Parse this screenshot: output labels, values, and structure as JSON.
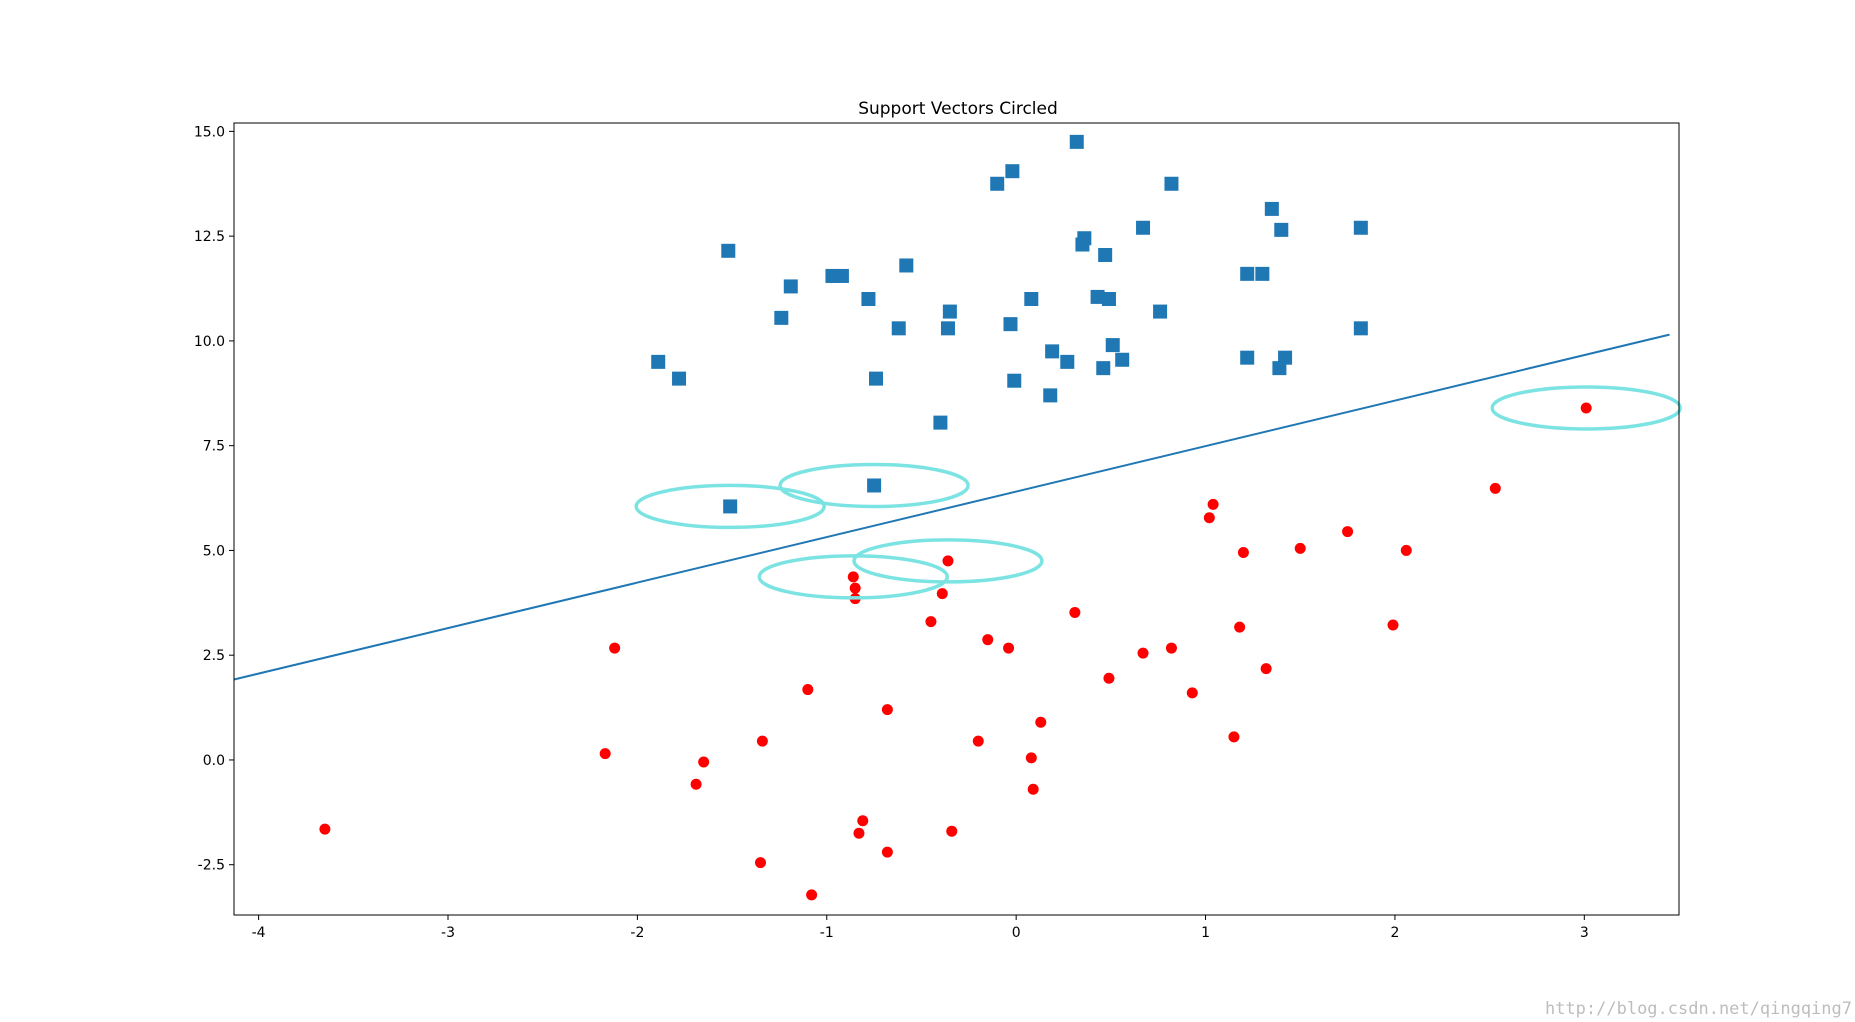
{
  "chart_data": {
    "type": "scatter",
    "title": "Support Vectors Circled",
    "xlim": [
      -4.13,
      3.5
    ],
    "ylim": [
      -3.7,
      15.2
    ],
    "x_ticks": [
      -4,
      -3,
      -2,
      -1,
      0,
      1,
      2,
      3
    ],
    "x_tick_labels": [
      "-4",
      "-3",
      "-2",
      "-1",
      "0",
      "1",
      "2",
      "3"
    ],
    "y_ticks": [
      15.0,
      12.5,
      10.0,
      7.5,
      5.0,
      2.5,
      0.0,
      -2.5
    ],
    "y_tick_labels": [
      "15.0",
      "12.5",
      "10.0",
      "7.5",
      "5.0",
      "2.5",
      "0.0",
      "-2.5"
    ],
    "grid": false,
    "colors": {
      "class_square": "#1f77b4",
      "class_circle": "#ff0000",
      "boundary": "#1f77b4",
      "support_vector_ring": "#7ce3e3"
    },
    "series": [
      {
        "marker": "square",
        "points": [
          [
            0.32,
            14.75
          ],
          [
            -0.02,
            14.05
          ],
          [
            -0.1,
            13.75
          ],
          [
            0.82,
            13.75
          ],
          [
            1.35,
            13.15
          ],
          [
            1.82,
            12.7
          ],
          [
            0.67,
            12.7
          ],
          [
            1.4,
            12.65
          ],
          [
            -1.52,
            12.15
          ],
          [
            0.36,
            12.45
          ],
          [
            0.35,
            12.3
          ],
          [
            0.47,
            12.05
          ],
          [
            -0.58,
            11.8
          ],
          [
            1.22,
            11.6
          ],
          [
            1.3,
            11.6
          ],
          [
            -0.97,
            11.55
          ],
          [
            -0.92,
            11.55
          ],
          [
            -1.19,
            11.3
          ],
          [
            -0.78,
            11.0
          ],
          [
            0.08,
            11.0
          ],
          [
            0.43,
            11.05
          ],
          [
            0.49,
            11.0
          ],
          [
            0.76,
            10.7
          ],
          [
            -0.35,
            10.7
          ],
          [
            -1.24,
            10.55
          ],
          [
            -0.62,
            10.3
          ],
          [
            -0.36,
            10.3
          ],
          [
            -0.03,
            10.4
          ],
          [
            1.82,
            10.3
          ],
          [
            0.51,
            9.9
          ],
          [
            0.19,
            9.75
          ],
          [
            0.27,
            9.5
          ],
          [
            0.56,
            9.55
          ],
          [
            1.22,
            9.6
          ],
          [
            1.42,
            9.6
          ],
          [
            -1.89,
            9.5
          ],
          [
            -1.78,
            9.1
          ],
          [
            0.46,
            9.35
          ],
          [
            1.39,
            9.35
          ],
          [
            -0.74,
            9.1
          ],
          [
            -0.01,
            9.05
          ],
          [
            0.18,
            8.7
          ],
          [
            -0.4,
            8.05
          ],
          [
            -0.75,
            6.55
          ],
          [
            -1.51,
            6.05
          ]
        ]
      },
      {
        "marker": "circle",
        "points": [
          [
            3.01,
            8.4
          ],
          [
            2.53,
            6.48
          ],
          [
            1.04,
            6.1
          ],
          [
            1.02,
            5.78
          ],
          [
            1.75,
            5.45
          ],
          [
            1.2,
            4.95
          ],
          [
            1.5,
            5.05
          ],
          [
            2.06,
            5.0
          ],
          [
            -0.36,
            4.75
          ],
          [
            -0.86,
            4.37
          ],
          [
            -0.85,
            4.1
          ],
          [
            -0.85,
            3.85
          ],
          [
            -0.39,
            3.97
          ],
          [
            0.31,
            3.52
          ],
          [
            -0.45,
            3.3
          ],
          [
            1.18,
            3.17
          ],
          [
            1.99,
            3.22
          ],
          [
            -2.12,
            2.67
          ],
          [
            -0.15,
            2.87
          ],
          [
            -0.04,
            2.67
          ],
          [
            0.67,
            2.55
          ],
          [
            0.82,
            2.67
          ],
          [
            1.32,
            2.18
          ],
          [
            0.49,
            1.95
          ],
          [
            -1.1,
            1.68
          ],
          [
            0.93,
            1.6
          ],
          [
            -0.68,
            1.2
          ],
          [
            0.13,
            0.9
          ],
          [
            -1.34,
            0.45
          ],
          [
            -0.2,
            0.45
          ],
          [
            1.15,
            0.55
          ],
          [
            -2.17,
            0.15
          ],
          [
            0.08,
            0.05
          ],
          [
            -1.65,
            -0.05
          ],
          [
            -1.69,
            -0.58
          ],
          [
            0.09,
            -0.7
          ],
          [
            -3.65,
            -1.65
          ],
          [
            -0.81,
            -1.45
          ],
          [
            -0.83,
            -1.75
          ],
          [
            -0.34,
            -1.7
          ],
          [
            -0.68,
            -2.2
          ],
          [
            -1.35,
            -2.45
          ],
          [
            -1.08,
            -3.22
          ]
        ]
      }
    ],
    "decision_boundary": {
      "x": [
        -4.13,
        3.45
      ],
      "y": [
        1.92,
        10.15
      ]
    },
    "support_vectors": [
      [
        -1.51,
        6.05
      ],
      [
        -0.75,
        6.55
      ],
      [
        -0.86,
        4.37
      ],
      [
        -0.36,
        4.75
      ],
      [
        3.01,
        8.4
      ]
    ],
    "watermark": "http://blog.csdn.net/qingqing7"
  }
}
